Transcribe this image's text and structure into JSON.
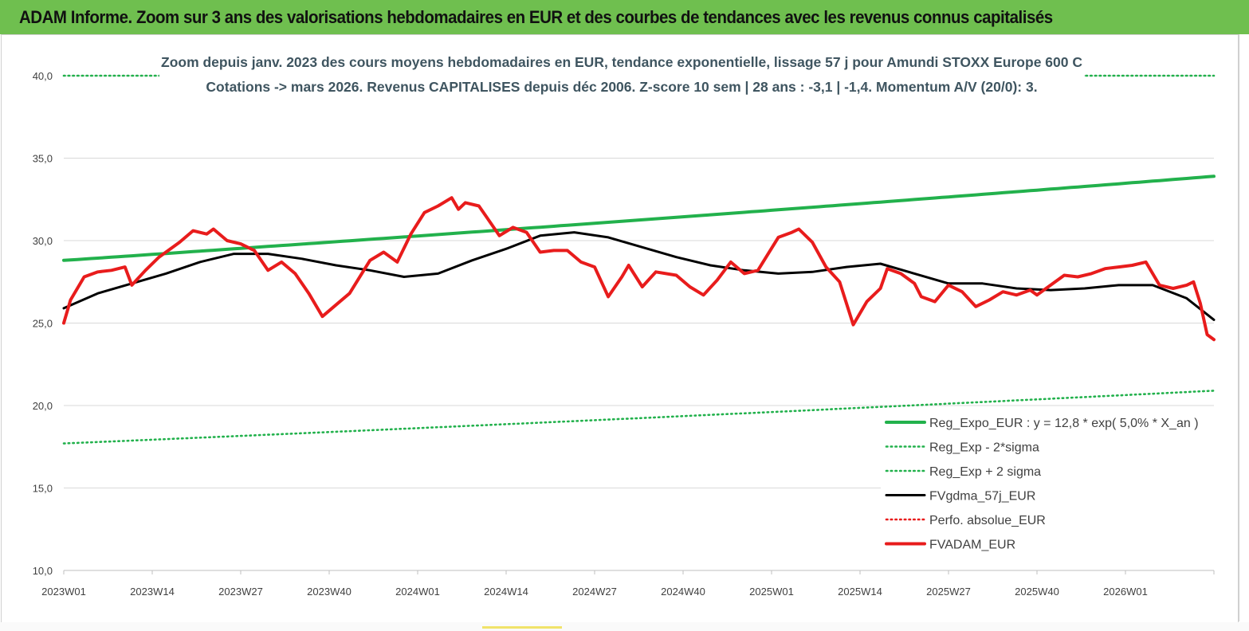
{
  "header": {
    "title": "ADAM Informe. Zoom sur 3 ans des valorisations hebdomadaires en EUR et des courbes de tendances avec les revenus connus capitalisés"
  },
  "chart_data": {
    "type": "line",
    "title_line1": "Zoom depuis janv. 2023 des cours moyens hebdomadaires en EUR, tendance exponentielle, lissage 57 j pour Amundi STOXX Europe 600 C",
    "title_line2": "Cotations -> mars 2026. Revenus CAPITALISES depuis déc 2006. Z-score 10 sem | 28 ans : -3,1 | -1,4. Momentum A/V (20/0): 3.",
    "ylim": [
      10,
      40
    ],
    "y_ticks": [
      "10,0",
      "15,0",
      "20,0",
      "25,0",
      "30,0",
      "35,0",
      "40,0"
    ],
    "x_ticks": [
      "2023W01",
      "2023W14",
      "2023W27",
      "2023W40",
      "2024W01",
      "2024W14",
      "2024W27",
      "2024W40",
      "2025W01",
      "2025W14",
      "2025W27",
      "2025W40",
      "2026W01"
    ],
    "n_weeks": 170,
    "legend_position": "bottom-right",
    "colors": {
      "reg": "#22b14c",
      "band": "#22b14c",
      "smooth": "#000000",
      "perfo": "#e81c1c",
      "price": "#e81c1c"
    },
    "series": [
      {
        "name": "Reg_Expo_EUR : y = 12,8 * exp( 5,0% * X_an )",
        "style": "solid-thick",
        "color": "#22b14c",
        "anchors": [
          [
            0,
            28.8
          ],
          [
            169,
            33.9
          ]
        ]
      },
      {
        "name": "Reg_Exp - 2*sigma",
        "style": "dotted",
        "color": "#22b14c",
        "anchors": [
          [
            0,
            17.7
          ],
          [
            169,
            20.9
          ]
        ]
      },
      {
        "name": "Reg_Exp + 2 sigma",
        "style": "dotted",
        "color": "#22b14c",
        "anchors": [
          [
            0,
            40.0
          ],
          [
            169,
            40.0
          ]
        ]
      },
      {
        "name": "FVgdma_57j_EUR",
        "style": "solid",
        "color": "#000000",
        "anchors": [
          [
            0,
            25.9
          ],
          [
            5,
            26.8
          ],
          [
            10,
            27.4
          ],
          [
            15,
            28.0
          ],
          [
            20,
            28.7
          ],
          [
            25,
            29.2
          ],
          [
            30,
            29.2
          ],
          [
            35,
            28.9
          ],
          [
            40,
            28.5
          ],
          [
            45,
            28.2
          ],
          [
            50,
            27.8
          ],
          [
            55,
            28.0
          ],
          [
            60,
            28.8
          ],
          [
            65,
            29.5
          ],
          [
            70,
            30.3
          ],
          [
            75,
            30.5
          ],
          [
            80,
            30.2
          ],
          [
            85,
            29.6
          ],
          [
            90,
            29.0
          ],
          [
            95,
            28.5
          ],
          [
            100,
            28.2
          ],
          [
            105,
            28.0
          ],
          [
            110,
            28.1
          ],
          [
            115,
            28.4
          ],
          [
            120,
            28.6
          ],
          [
            125,
            28.0
          ],
          [
            130,
            27.4
          ],
          [
            135,
            27.4
          ],
          [
            140,
            27.1
          ],
          [
            145,
            27.0
          ],
          [
            150,
            27.1
          ],
          [
            155,
            27.3
          ],
          [
            160,
            27.3
          ],
          [
            165,
            26.5
          ],
          [
            169,
            25.2
          ]
        ]
      },
      {
        "name": "Perfo. absolue_EUR",
        "style": "dotted",
        "color": "#e81c1c",
        "anchors": []
      },
      {
        "name": "FVADAM_EUR",
        "style": "solid-thick",
        "color": "#e81c1c",
        "anchors": [
          [
            0,
            25.0
          ],
          [
            1,
            26.4
          ],
          [
            3,
            27.8
          ],
          [
            5,
            28.1
          ],
          [
            7,
            28.2
          ],
          [
            9,
            28.4
          ],
          [
            10,
            27.3
          ],
          [
            12,
            28.2
          ],
          [
            14,
            29.0
          ],
          [
            17,
            29.9
          ],
          [
            19,
            30.6
          ],
          [
            21,
            30.4
          ],
          [
            22,
            30.7
          ],
          [
            24,
            30.0
          ],
          [
            26,
            29.8
          ],
          [
            28,
            29.4
          ],
          [
            30,
            28.2
          ],
          [
            32,
            28.7
          ],
          [
            34,
            28.0
          ],
          [
            36,
            26.8
          ],
          [
            38,
            25.4
          ],
          [
            40,
            26.1
          ],
          [
            42,
            26.8
          ],
          [
            45,
            28.8
          ],
          [
            47,
            29.3
          ],
          [
            49,
            28.7
          ],
          [
            51,
            30.4
          ],
          [
            53,
            31.7
          ],
          [
            55,
            32.1
          ],
          [
            57,
            32.6
          ],
          [
            58,
            31.9
          ],
          [
            59,
            32.3
          ],
          [
            61,
            32.1
          ],
          [
            62,
            31.5
          ],
          [
            64,
            30.3
          ],
          [
            66,
            30.8
          ],
          [
            68,
            30.5
          ],
          [
            70,
            29.3
          ],
          [
            72,
            29.4
          ],
          [
            74,
            29.4
          ],
          [
            76,
            28.7
          ],
          [
            78,
            28.4
          ],
          [
            80,
            26.6
          ],
          [
            82,
            27.8
          ],
          [
            83,
            28.5
          ],
          [
            85,
            27.2
          ],
          [
            87,
            28.1
          ],
          [
            90,
            27.9
          ],
          [
            92,
            27.2
          ],
          [
            94,
            26.7
          ],
          [
            96,
            27.6
          ],
          [
            98,
            28.7
          ],
          [
            100,
            28.0
          ],
          [
            102,
            28.2
          ],
          [
            105,
            30.2
          ],
          [
            107,
            30.5
          ],
          [
            108,
            30.7
          ],
          [
            110,
            29.9
          ],
          [
            112,
            28.4
          ],
          [
            114,
            27.5
          ],
          [
            116,
            24.9
          ],
          [
            118,
            26.3
          ],
          [
            120,
            27.1
          ],
          [
            121,
            28.3
          ],
          [
            123,
            28.0
          ],
          [
            125,
            27.4
          ],
          [
            126,
            26.6
          ],
          [
            128,
            26.3
          ],
          [
            130,
            27.3
          ],
          [
            132,
            26.9
          ],
          [
            134,
            26.0
          ],
          [
            136,
            26.4
          ],
          [
            138,
            26.9
          ],
          [
            140,
            26.7
          ],
          [
            142,
            27.0
          ],
          [
            143,
            26.7
          ],
          [
            145,
            27.3
          ],
          [
            147,
            27.9
          ],
          [
            149,
            27.8
          ],
          [
            151,
            28.0
          ],
          [
            153,
            28.3
          ],
          [
            155,
            28.4
          ],
          [
            157,
            28.5
          ],
          [
            159,
            28.7
          ],
          [
            161,
            27.3
          ],
          [
            163,
            27.1
          ],
          [
            165,
            27.3
          ],
          [
            166,
            27.5
          ],
          [
            167,
            26.2
          ],
          [
            168,
            24.3
          ],
          [
            169,
            24.0
          ]
        ]
      }
    ]
  }
}
